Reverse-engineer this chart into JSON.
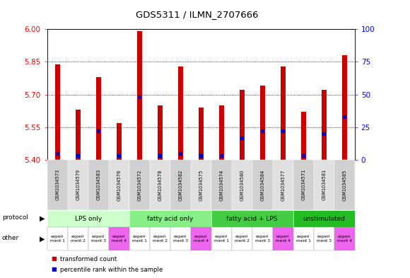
{
  "title": "GDS5311 / ILMN_2707666",
  "samples": [
    "GSM1034573",
    "GSM1034579",
    "GSM1034583",
    "GSM1034576",
    "GSM1034572",
    "GSM1034578",
    "GSM1034582",
    "GSM1034575",
    "GSM1034574",
    "GSM1034580",
    "GSM1034584",
    "GSM1034577",
    "GSM1034571",
    "GSM1034581",
    "GSM1034585"
  ],
  "transformed_count": [
    5.84,
    5.63,
    5.78,
    5.57,
    5.99,
    5.65,
    5.83,
    5.64,
    5.65,
    5.72,
    5.74,
    5.83,
    5.62,
    5.72,
    5.88
  ],
  "percentile_rank": [
    5,
    3,
    22,
    3,
    48,
    3,
    5,
    3,
    3,
    17,
    22,
    22,
    3,
    20,
    33
  ],
  "ylim_left": [
    5.4,
    6.0
  ],
  "yticks_left": [
    5.4,
    5.55,
    5.7,
    5.85,
    6.0
  ],
  "ylim_right": [
    0,
    100
  ],
  "yticks_right": [
    0,
    25,
    50,
    75,
    100
  ],
  "protocol_groups": [
    {
      "label": "LPS only",
      "start": 0,
      "end": 4,
      "color": "#ccffcc"
    },
    {
      "label": "fatty acid only",
      "start": 4,
      "end": 8,
      "color": "#88ee88"
    },
    {
      "label": "fatty acid + LPS",
      "start": 8,
      "end": 12,
      "color": "#44cc44"
    },
    {
      "label": "unstimulated",
      "start": 12,
      "end": 15,
      "color": "#22bb22"
    }
  ],
  "other_labels": [
    "experi\nment 1",
    "experi\nment 2",
    "experi\nment 3",
    "experi\nment 4",
    "experi\nment 1",
    "experi\nment 2",
    "experi\nment 3",
    "experi\nment 4",
    "experi\nment 1",
    "experi\nment 2",
    "experi\nment 3",
    "experi\nment 4",
    "experi\nment 1",
    "experi\nment 3",
    "experi\nment 4"
  ],
  "other_colors": [
    "#ffffff",
    "#ffffff",
    "#ffffff",
    "#ee66ee",
    "#ffffff",
    "#ffffff",
    "#ffffff",
    "#ee66ee",
    "#ffffff",
    "#ffffff",
    "#ffffff",
    "#ee66ee",
    "#ffffff",
    "#ffffff",
    "#ee66ee"
  ],
  "bar_color": "#cc0000",
  "percentile_color": "#0000cc",
  "background_color": "#ffffff",
  "plot_bg_color": "#ffffff",
  "sample_bg_even": "#d0d0d0",
  "sample_bg_odd": "#e0e0e0"
}
